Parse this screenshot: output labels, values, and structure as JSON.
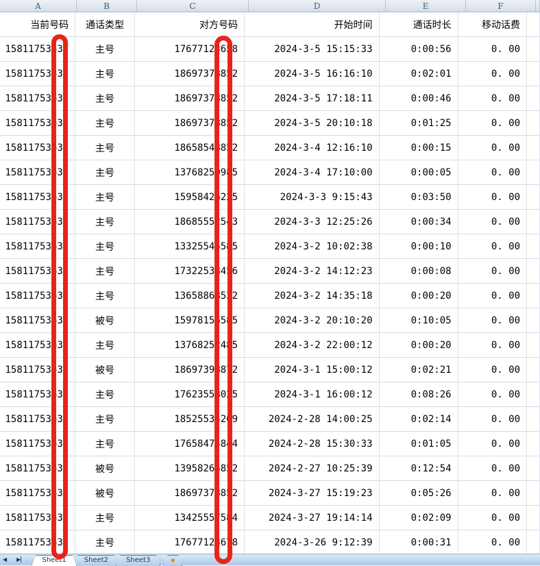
{
  "table": {
    "letters": [
      "A",
      "B",
      "C",
      "D",
      "E",
      "F"
    ],
    "headers": [
      "当前号码",
      "通话类型",
      "对方号码",
      "开始时间",
      "通话时长",
      "移动话费"
    ],
    "rows": [
      {
        "a": "15811753635",
        "b": "主号",
        "c": "17677123658",
        "d": "2024-3-5 15:15:33",
        "e": "0:00:56",
        "f": "0. 00"
      },
      {
        "a": "15811753635",
        "b": "主号",
        "c": "18697378852",
        "d": "2024-3-5 16:16:10",
        "e": "0:02:01",
        "f": "0. 00"
      },
      {
        "a": "15811753635",
        "b": "主号",
        "c": "18697378852",
        "d": "2024-3-5 17:18:11",
        "e": "0:00:46",
        "f": "0. 00"
      },
      {
        "a": "15811753635",
        "b": "主号",
        "c": "18697378852",
        "d": "2024-3-5 20:10:18",
        "e": "0:01:25",
        "f": "0. 00"
      },
      {
        "a": "15811753635",
        "b": "主号",
        "c": "18658548852",
        "d": "2024-3-4 12:16:10",
        "e": "0:00:15",
        "f": "0. 00"
      },
      {
        "a": "15811753635",
        "b": "主号",
        "c": "13768250985",
        "d": "2024-3-4 17:10:00",
        "e": "0:00:05",
        "f": "0. 00"
      },
      {
        "a": "15811753635",
        "b": "主号",
        "c": "15958426225",
        "d": "2024-3-3 9:15:43",
        "e": "0:03:50",
        "f": "0. 00"
      },
      {
        "a": "15811753635",
        "b": "主号",
        "c": "18685552543",
        "d": "2024-3-3 12:25:26",
        "e": "0:00:34",
        "f": "0. 00"
      },
      {
        "a": "15811753635",
        "b": "主号",
        "c": "13325545585",
        "d": "2024-3-2 10:02:38",
        "e": "0:00:10",
        "f": "0. 00"
      },
      {
        "a": "15811753635",
        "b": "主号",
        "c": "17322538456",
        "d": "2024-3-2 14:12:23",
        "e": "0:00:08",
        "f": "0. 00"
      },
      {
        "a": "15811753635",
        "b": "主号",
        "c": "13658868522",
        "d": "2024-3-2 14:35:18",
        "e": "0:00:20",
        "f": "0. 00"
      },
      {
        "a": "15811753635",
        "b": "被号",
        "c": "15978156585",
        "d": "2024-3-2 20:10:20",
        "e": "0:10:05",
        "f": "0. 00"
      },
      {
        "a": "15811753635",
        "b": "主号",
        "c": "13768252485",
        "d": "2024-3-2 22:00:12",
        "e": "0:00:20",
        "f": "0. 00"
      },
      {
        "a": "15811753635",
        "b": "被号",
        "c": "18697398872",
        "d": "2024-3-1 15:00:12",
        "e": "0:02:21",
        "f": "0. 00"
      },
      {
        "a": "15811753635",
        "b": "主号",
        "c": "17623558025",
        "d": "2024-3-1 16:00:12",
        "e": "0:08:26",
        "f": "0. 00"
      },
      {
        "a": "15811753635",
        "b": "主号",
        "c": "18525534269",
        "d": "2024-2-28 14:00:25",
        "e": "0:02:14",
        "f": "0. 00"
      },
      {
        "a": "15811753635",
        "b": "主号",
        "c": "17658474844",
        "d": "2024-2-28 15:30:33",
        "e": "0:01:05",
        "f": "0. 00"
      },
      {
        "a": "15811753635",
        "b": "被号",
        "c": "13958265852",
        "d": "2024-2-27 10:25:39",
        "e": "0:12:54",
        "f": "0. 00"
      },
      {
        "a": "15811753635",
        "b": "被号",
        "c": "18697378852",
        "d": "2024-3-27 15:19:23",
        "e": "0:05:26",
        "f": "0. 00"
      },
      {
        "a": "15811753635",
        "b": "主号",
        "c": "13425557584",
        "d": "2024-3-27 19:14:14",
        "e": "0:02:09",
        "f": "0. 00"
      },
      {
        "a": "15811753635",
        "b": "主号",
        "c": "17677123678",
        "d": "2024-3-26 9:12:39",
        "e": "0:00:31",
        "f": "0. 00"
      }
    ]
  },
  "sheet_tabs": {
    "tabs": [
      "Sheet1",
      "Sheet2",
      "Sheet3"
    ],
    "active_tab": "Sheet1"
  },
  "icons": {
    "sheet_nav_prev": "◀",
    "sheet_nav_last": "▶▏",
    "insert_sheet": "✸"
  },
  "colors": {
    "annotation_red": "#e8231a",
    "grid_line": "#d3dbe5",
    "column_header_text": "#3e5a78",
    "tab_strip_blue": "#aac6e4"
  }
}
